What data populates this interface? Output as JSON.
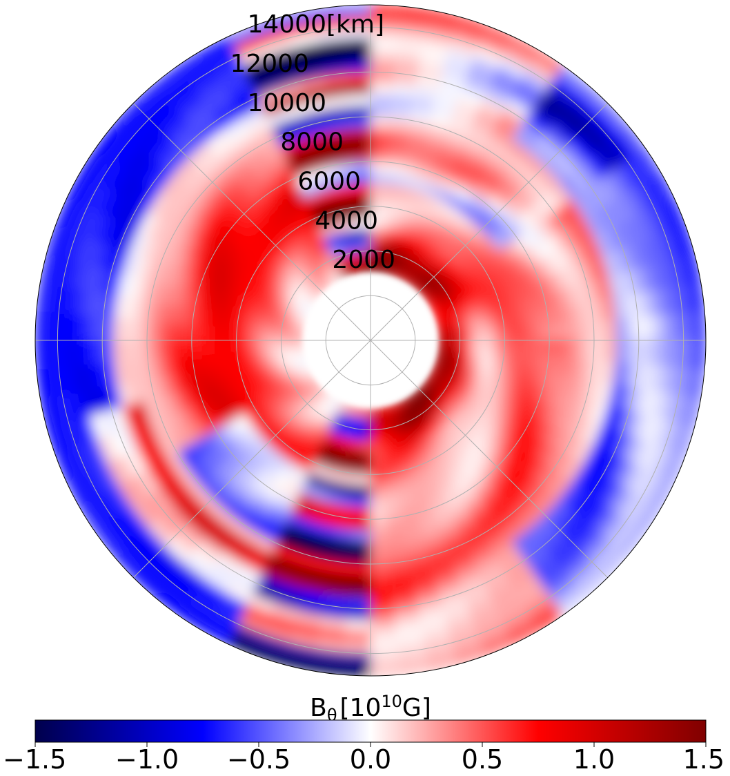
{
  "chart_data": {
    "type": "heatmap",
    "projection": "polar",
    "title": "",
    "radial_axis": {
      "unit_label": "[km]",
      "tick_labels": [
        "2000",
        "4000",
        "6000",
        "8000",
        "10000",
        "12000",
        "14000"
      ],
      "tick_values": [
        2000,
        4000,
        6000,
        8000,
        10000,
        12000,
        14000
      ],
      "r_max": 15000,
      "inner_hole_radius": 3000
    },
    "angular_grid_degrees": [
      0,
      45,
      90,
      135,
      180,
      225,
      270,
      315
    ],
    "grid": true,
    "colorbar": {
      "label_base": "B",
      "label_subscript": "θ",
      "label_unit_pre": "[10",
      "label_unit_exp": "10",
      "label_unit_post": "G]",
      "placement": "bottom",
      "vmin": -1.5,
      "vmax": 1.5,
      "tick_values": [
        -1.5,
        -1.0,
        -0.5,
        0.0,
        0.5,
        1.0,
        1.5
      ],
      "tick_labels": [
        "−1.5",
        "−1.0",
        "−0.5",
        "0.0",
        "0.5",
        "1.0",
        "1.5"
      ],
      "colormap": "seismic",
      "colormap_stops": [
        "#00004c",
        "#0000ff",
        "#ffffff",
        "#ff0000",
        "#800000"
      ]
    }
  }
}
